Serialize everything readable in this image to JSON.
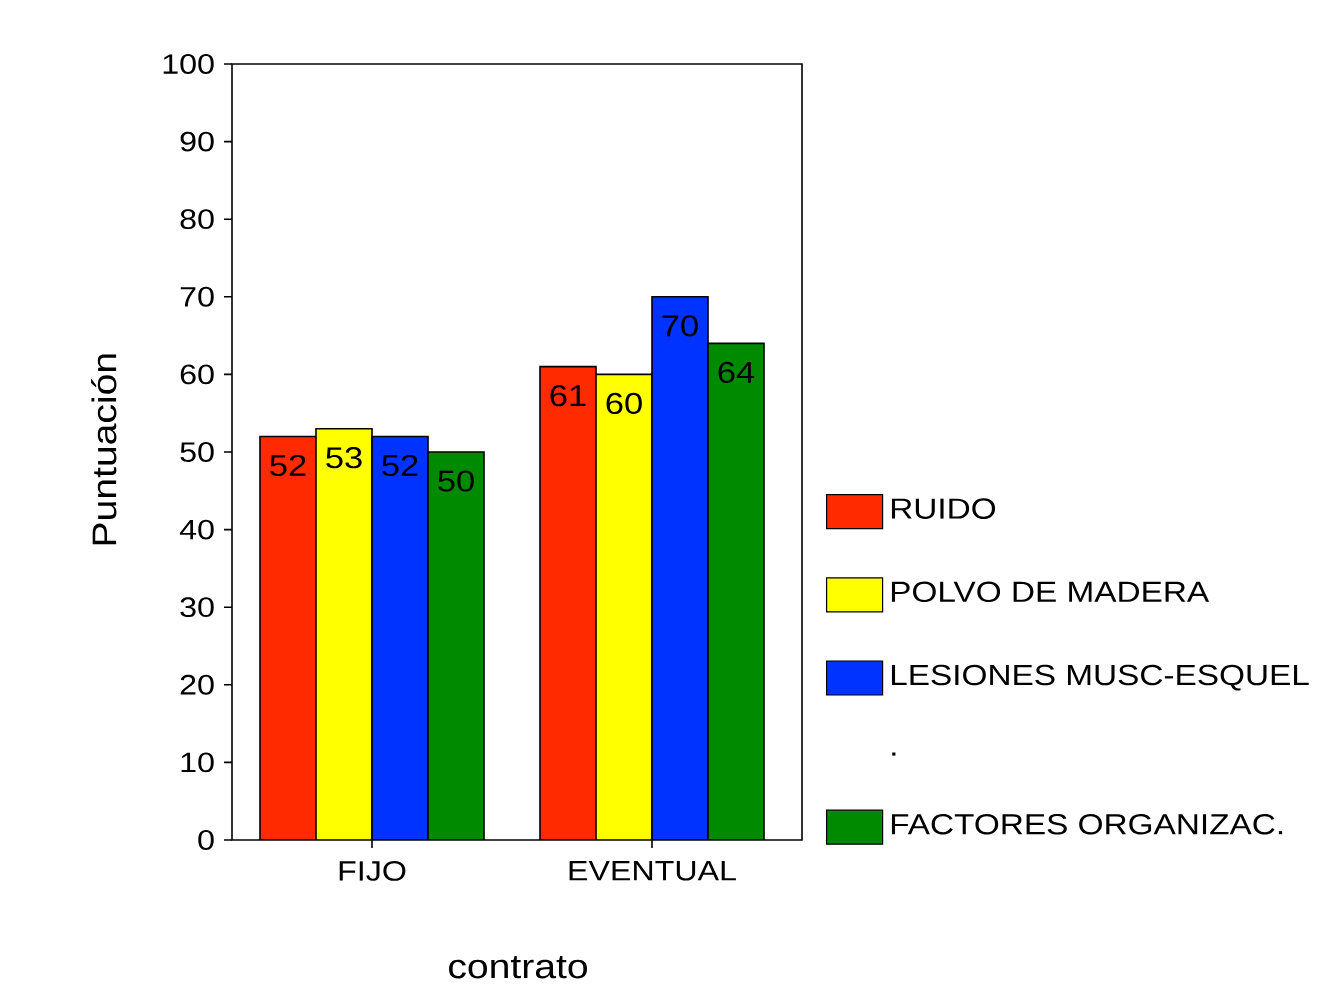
{
  "chart_data": {
    "type": "bar",
    "xlabel": "contrato",
    "ylabel": "Puntuación",
    "categories": [
      "FIJO",
      "EVENTUAL"
    ],
    "series": [
      {
        "name": "RUIDO",
        "color": "#ff2a00",
        "values": [
          52,
          61
        ]
      },
      {
        "name": "POLVO DE MADERA",
        "color": "#ffff00",
        "values": [
          53,
          60
        ]
      },
      {
        "name": "LESIONES MUSC-ESQUEL",
        "color": "#0033ff",
        "values": [
          52,
          70
        ]
      },
      {
        "name": "FACTORES ORGANIZAC.",
        "color": "#008a00",
        "values": [
          50,
          64
        ]
      }
    ],
    "ylim": [
      0,
      100
    ],
    "yticks": [
      0,
      10,
      20,
      30,
      40,
      50,
      60,
      70,
      80,
      90,
      100
    ],
    "legend": "right",
    "data_labels": true,
    "annotations": [
      "."
    ]
  }
}
